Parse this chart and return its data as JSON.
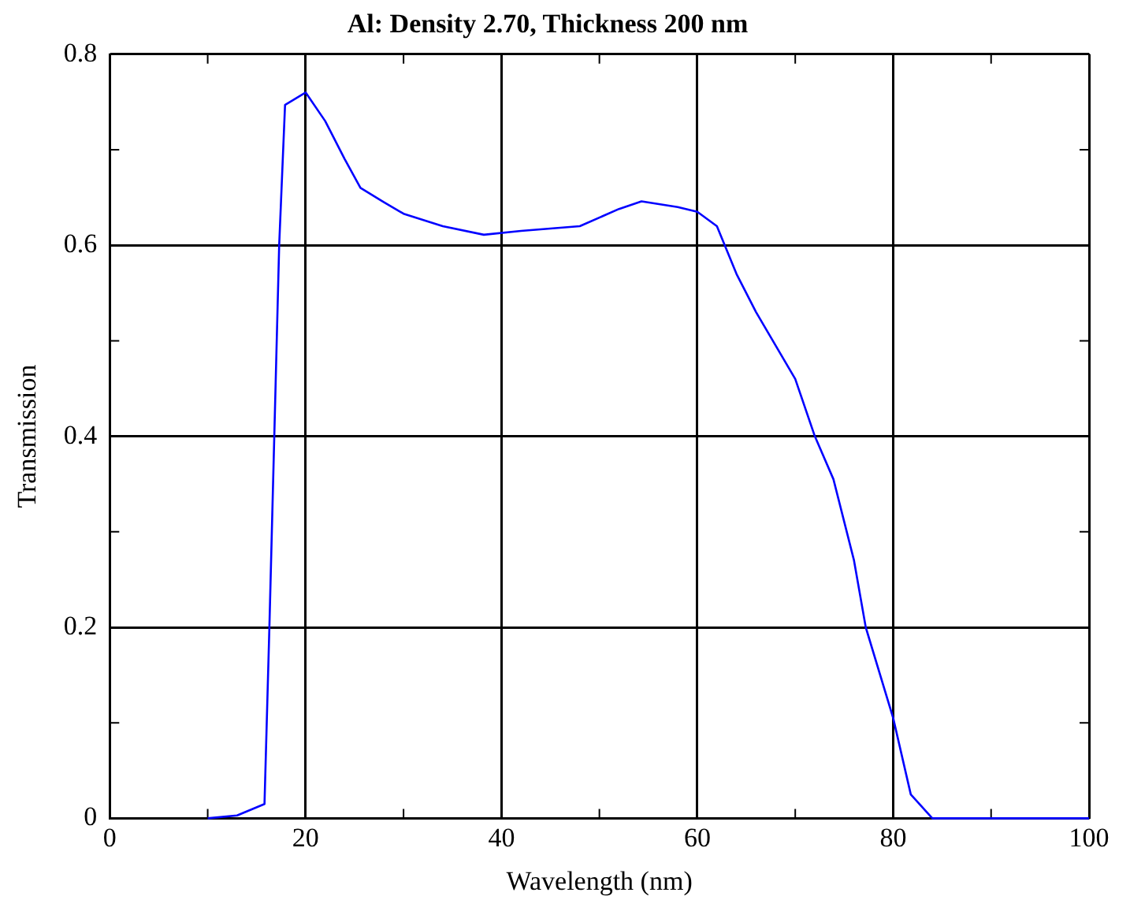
{
  "chart_data": {
    "type": "line",
    "title": "Al: Density 2.70, Thickness 200 nm",
    "xlabel": "Wavelength (nm)",
    "ylabel": "Transmission",
    "x": [
      10,
      13,
      15.8,
      16.3,
      16.8,
      17.3,
      17.9,
      20,
      22,
      24,
      25.6,
      28,
      30,
      34,
      38.2,
      42,
      48,
      52,
      54.3,
      58,
      60,
      62,
      64,
      66,
      70,
      72,
      73.9,
      76,
      77.2,
      80,
      81.8,
      84,
      100
    ],
    "series": [
      {
        "color": "#0000ff",
        "values": [
          0,
          0.003,
          0.015,
          0.2,
          0.4,
          0.6,
          0.747,
          0.76,
          0.73,
          0.69,
          0.66,
          0.645,
          0.633,
          0.62,
          0.611,
          0.615,
          0.62,
          0.638,
          0.646,
          0.64,
          0.635,
          0.62,
          0.57,
          0.53,
          0.46,
          0.4,
          0.355,
          0.27,
          0.2,
          0.105,
          0.025,
          0,
          0
        ]
      }
    ],
    "xlim": [
      0,
      100
    ],
    "ylim": [
      0,
      0.8
    ],
    "xticks": [
      0,
      {
        "value": 10,
        "label": null
      },
      20,
      {
        "value": 30,
        "label": null
      },
      40,
      {
        "value": 50,
        "label": null
      },
      60,
      {
        "value": 70,
        "label": null
      },
      80,
      {
        "value": 90,
        "label": null
      },
      100
    ],
    "yticks": [
      0,
      {
        "value": 0.1,
        "label": null
      },
      0.2,
      {
        "value": 0.3,
        "label": null
      },
      0.4,
      {
        "value": 0.5,
        "label": null
      },
      0.6,
      {
        "value": 0.7,
        "label": null
      },
      0.8
    ],
    "grid": true,
    "legend": false,
    "marker": "none",
    "line_style": "solid"
  }
}
